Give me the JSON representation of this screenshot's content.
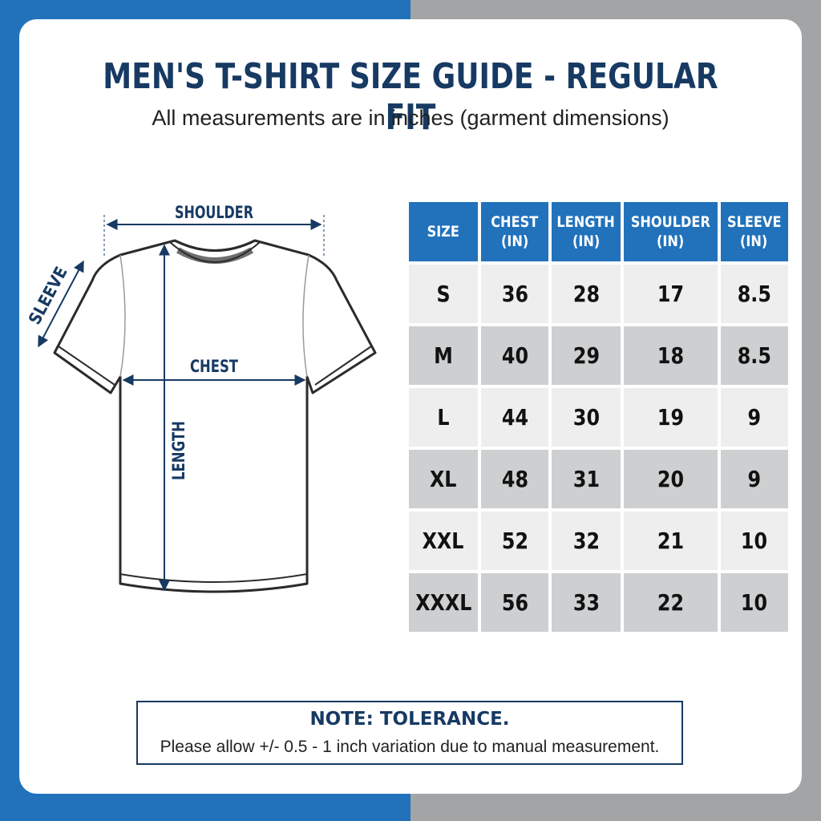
{
  "title": "MEN'S T-SHIRT SIZE GUIDE - REGULAR FIT",
  "subtitle": "All measurements are in inches (garment dimensions)",
  "diagram": {
    "shoulder_label": "SHOULDER",
    "sleeve_label": "SLEEVE",
    "chest_label": "CHEST",
    "length_label": "LENGTH"
  },
  "table": {
    "headers": [
      {
        "line1": "SIZE",
        "line2": ""
      },
      {
        "line1": "CHEST",
        "line2": "(IN)"
      },
      {
        "line1": "LENGTH",
        "line2": "(IN)"
      },
      {
        "line1": "SHOULDER",
        "line2": "(IN)"
      },
      {
        "line1": "SLEEVE",
        "line2": "(IN)"
      }
    ],
    "rows": [
      [
        "S",
        "36",
        "28",
        "17",
        "8.5"
      ],
      [
        "M",
        "40",
        "29",
        "18",
        "8.5"
      ],
      [
        "L",
        "44",
        "30",
        "19",
        "9"
      ],
      [
        "XL",
        "48",
        "31",
        "20",
        "9"
      ],
      [
        "XXL",
        "52",
        "32",
        "21",
        "10"
      ],
      [
        "XXXL",
        "56",
        "33",
        "22",
        "10"
      ]
    ]
  },
  "note": {
    "title": "NOTE: TOLERANCE.",
    "text": "Please allow +/- 0.5 - 1 inch variation due to manual measurement."
  },
  "colors": {
    "accent_blue": "#2172bb",
    "navy": "#173a63",
    "background_gray": "#a3a4a6",
    "row_light": "#eeeeef",
    "row_dark": "#cdcfd1"
  }
}
